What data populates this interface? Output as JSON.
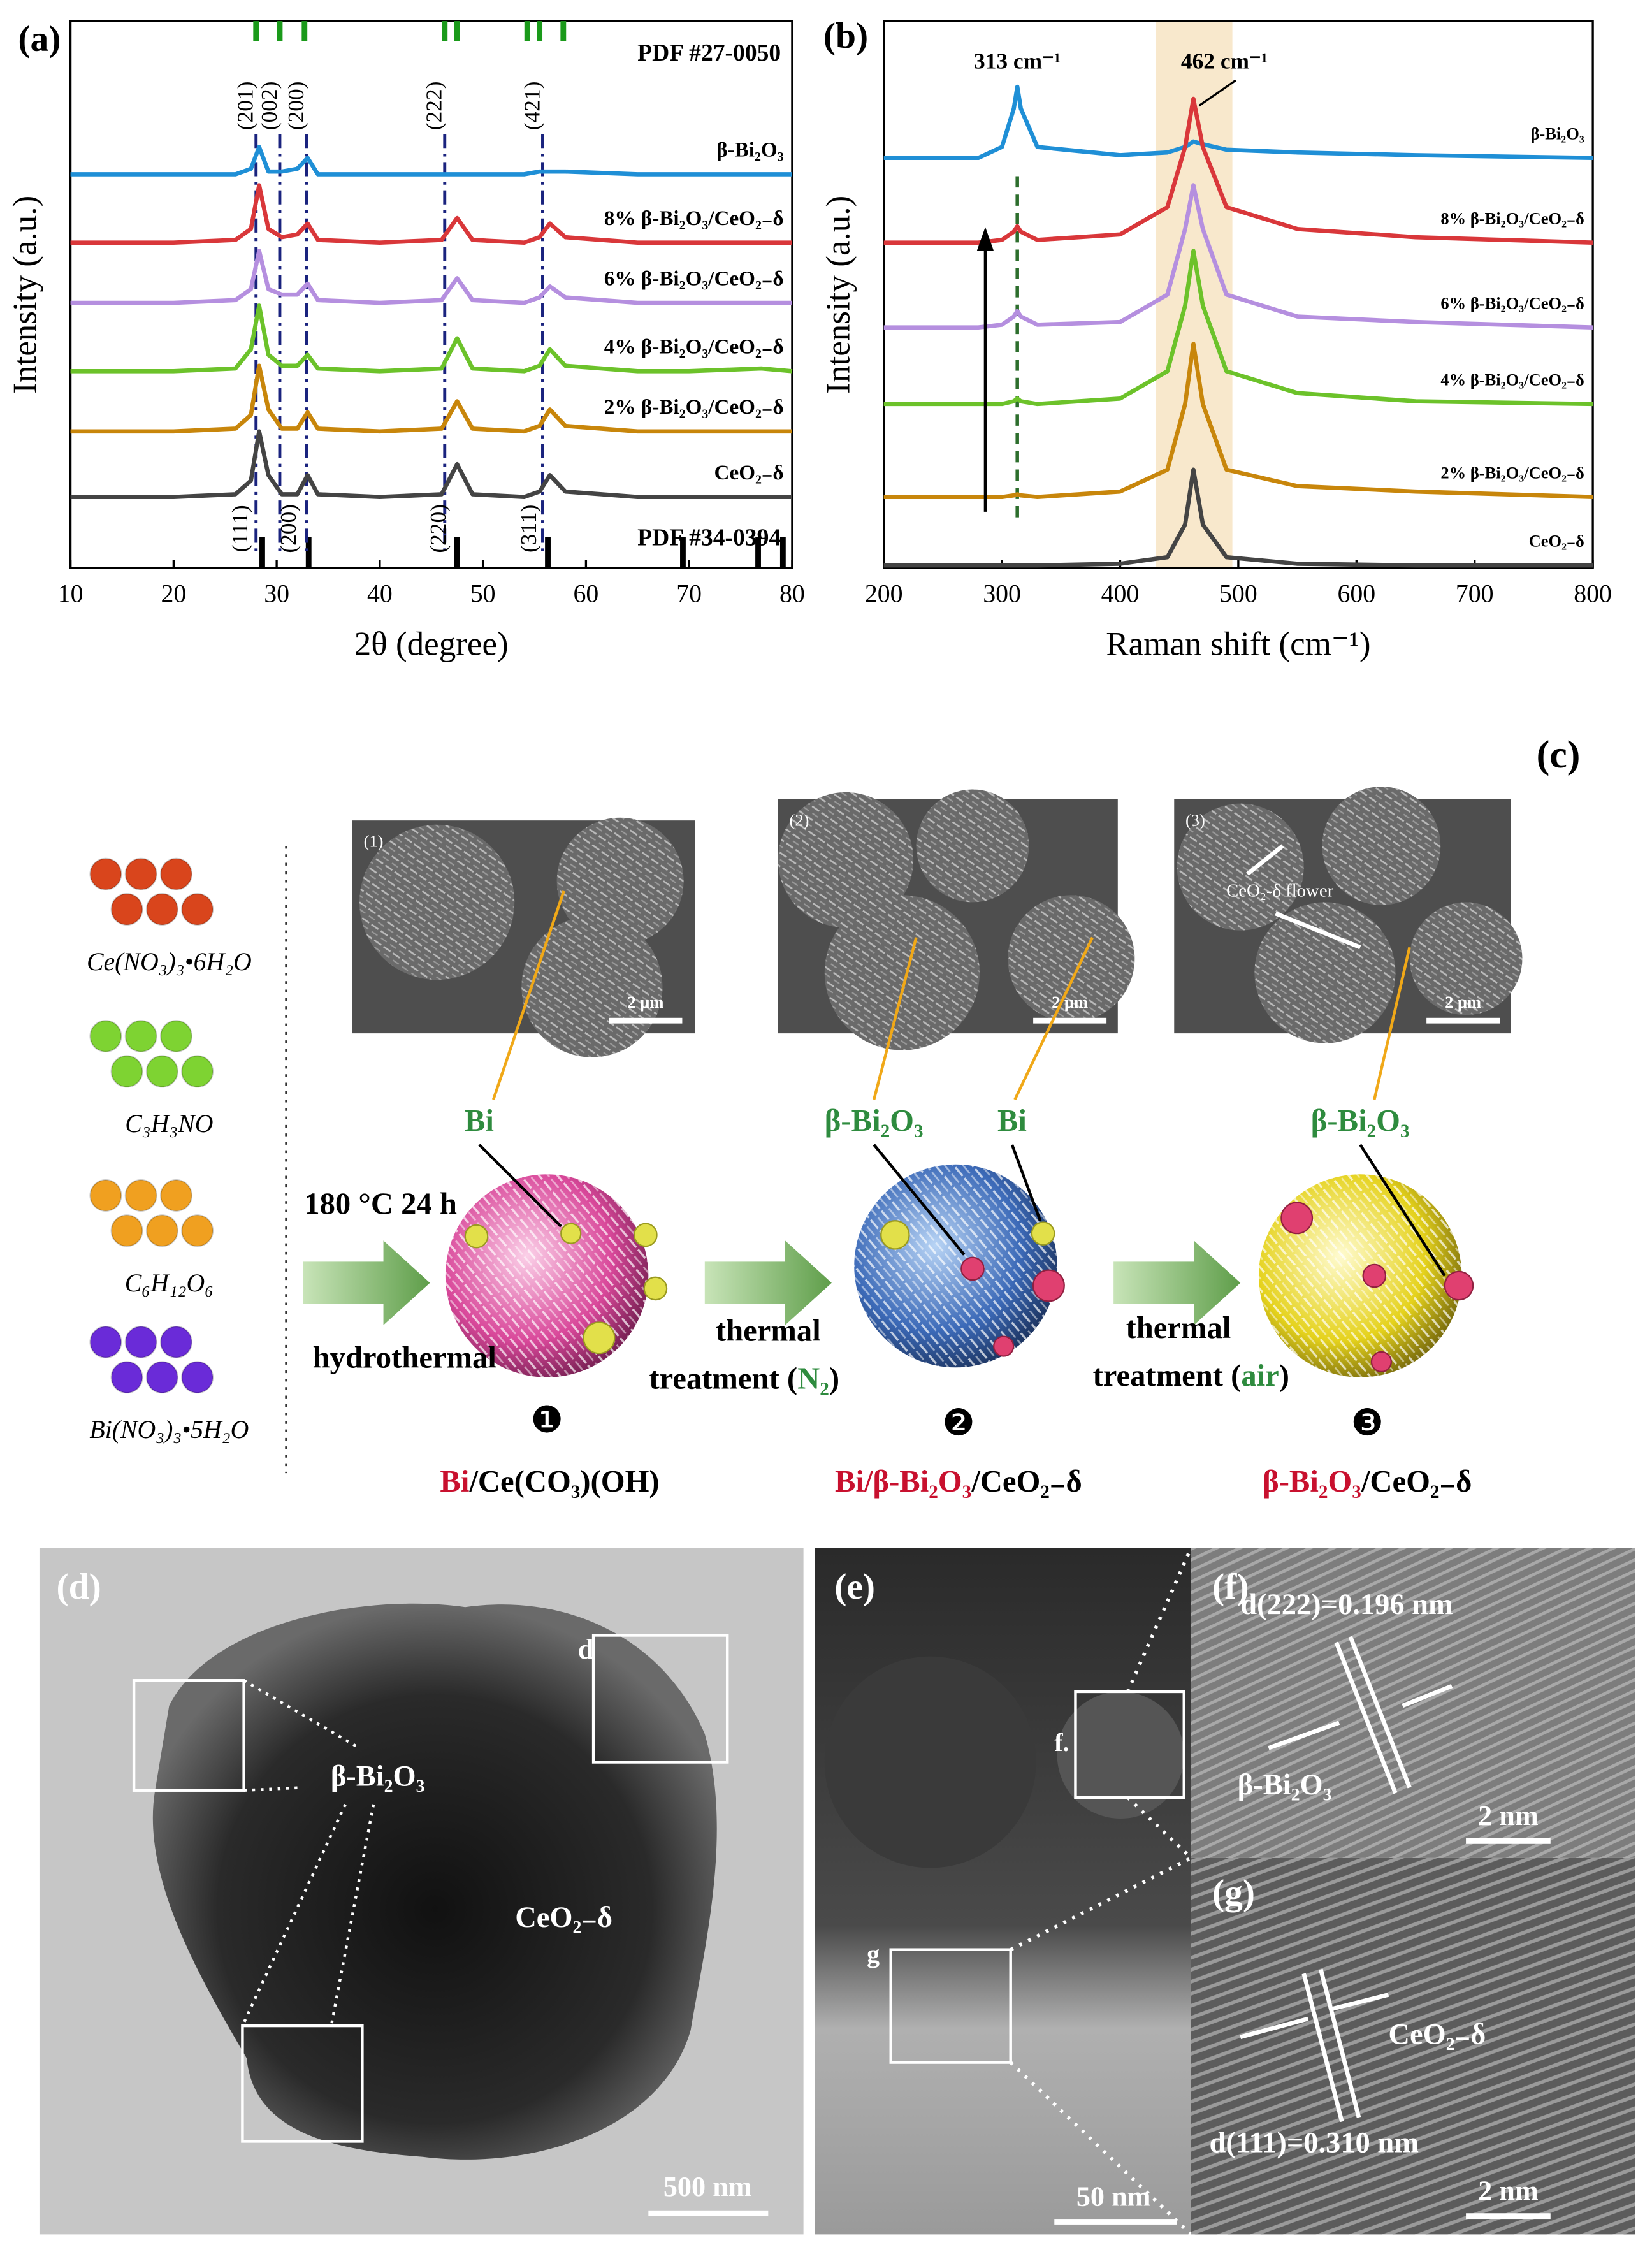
{
  "chart_data": [
    {
      "type": "line",
      "panel_label": "(a)",
      "x_label": "2θ (degree)",
      "y_label": "Intensity (a.u.)",
      "x": [
        10,
        20,
        26,
        27.5,
        28.3,
        29.2,
        30.5,
        32,
        33,
        34,
        40,
        46,
        47.5,
        49,
        54,
        55.5,
        56.5,
        58,
        65,
        70,
        77,
        80
      ],
      "xlim": [
        10,
        80
      ],
      "xticks": [
        10,
        20,
        30,
        40,
        50,
        60,
        70,
        80
      ],
      "ylim": [
        0,
        100
      ],
      "reference_label_rotate": true,
      "series": [
        {
          "name": "β-Bi₂O₃",
          "color": "#1f8fd6",
          "values": [
            72,
            72,
            72,
            73,
            77,
            72.5,
            72.5,
            73,
            75,
            72,
            72,
            72,
            72,
            72,
            72,
            72.5,
            72.5,
            72.5,
            72,
            72,
            72,
            72
          ]
        },
        {
          "name": "8% β-Bi₂O₃/CeO₂₋δ",
          "color": "#d9373a",
          "values": [
            59.5,
            59.5,
            60,
            62,
            70,
            62,
            60.5,
            61,
            63,
            60,
            59.5,
            60,
            64,
            60,
            59.5,
            60.5,
            63,
            60.5,
            59.5,
            59.5,
            59.5,
            59.5
          ]
        },
        {
          "name": "6% β-Bi₂O₃/CeO₂₋δ",
          "color": "#b58fdf",
          "values": [
            48.5,
            48.5,
            49,
            51,
            58,
            51,
            50,
            50,
            52,
            49,
            48.5,
            49,
            53,
            49,
            48.5,
            49.5,
            51.5,
            49.5,
            48.5,
            48.5,
            48.5,
            48.5
          ]
        },
        {
          "name": "4% β-Bi₂O₃/CeO₂₋δ",
          "color": "#6cc22a",
          "values": [
            36,
            36,
            36.5,
            40,
            48,
            39,
            37,
            37,
            39,
            36.5,
            36,
            36.5,
            42,
            36.5,
            36,
            37,
            40,
            37,
            36,
            36,
            36.5,
            36
          ]
        },
        {
          "name": "2% β-Bi₂O₃/CeO₂₋δ",
          "color": "#c8860b",
          "values": [
            25,
            25,
            25.5,
            28,
            37,
            29,
            25.5,
            25.5,
            28.5,
            25.5,
            25,
            25.5,
            30.5,
            25.5,
            25,
            26,
            29,
            26,
            25,
            25,
            25,
            25
          ]
        },
        {
          "name": "CeO₂₋δ",
          "color": "#444444",
          "values": [
            13,
            13,
            13.5,
            16,
            25,
            17,
            13.5,
            13.5,
            17,
            13.5,
            13,
            13.5,
            19,
            13.5,
            13,
            14,
            17,
            14,
            13,
            13,
            13,
            13
          ]
        }
      ],
      "reference_patterns": [
        {
          "name": "PDF #27-0050",
          "color": "#1a9a1a",
          "position": "top",
          "peaks": [
            28,
            30.3,
            32.7,
            46.3,
            47.5,
            54.3,
            55.5,
            57.8
          ]
        },
        {
          "name": "PDF #34-0394",
          "color": "#000000",
          "position": "bottom",
          "peaks": [
            28.6,
            33.1,
            47.5,
            56.3,
            69.4,
            76.7,
            79.1
          ]
        }
      ],
      "reference_lines": [
        {
          "x": 28,
          "label": "(201)",
          "color": "#1a237e"
        },
        {
          "x": 30.3,
          "label": "(002)",
          "color": "#1a237e"
        },
        {
          "x": 32.9,
          "label": "(200)",
          "color": "#1a237e"
        },
        {
          "x": 46.3,
          "label": "(222)",
          "color": "#1a237e"
        },
        {
          "x": 55.8,
          "label": "(421)",
          "color": "#1a237e"
        }
      ],
      "bottom_labels": [
        {
          "x": 28.3,
          "label": "(111)"
        },
        {
          "x": 33,
          "label": "(200)"
        },
        {
          "x": 47.5,
          "label": "(220)"
        },
        {
          "x": 56.3,
          "label": "(311)"
        }
      ]
    },
    {
      "type": "line",
      "panel_label": "(b)",
      "x_label": "Raman shift (cm⁻¹)",
      "y_label": "Intensity (a.u.)",
      "x": [
        200,
        280,
        300,
        310,
        313,
        316,
        330,
        400,
        440,
        455,
        462,
        470,
        490,
        550,
        650,
        800
      ],
      "xlim": [
        200,
        800
      ],
      "xticks": [
        200,
        300,
        400,
        500,
        600,
        700,
        800
      ],
      "ylim": [
        0,
        100
      ],
      "reference_label_rotate": false,
      "highlight": [
        430,
        495
      ],
      "highlight_color": "#f8e8cc",
      "series": [
        {
          "name": "β-Bi₂O₃",
          "color": "#1f8fd6",
          "values": [
            75,
            75,
            77,
            84,
            88,
            84,
            77,
            75.5,
            76,
            77,
            78,
            77.5,
            76.5,
            76,
            75.5,
            75
          ]
        },
        {
          "name": "8% β-Bi₂O₃/CeO₂₋δ",
          "color": "#d9373a",
          "values": [
            59.5,
            59.5,
            60,
            61.5,
            62.5,
            61.5,
            60,
            61,
            66,
            77,
            85.8,
            77,
            66,
            62,
            60.5,
            59.5
          ]
        },
        {
          "name": "6% β-Bi₂O₃/CeO₂₋δ",
          "color": "#b58fdf",
          "values": [
            44,
            44,
            44.5,
            46,
            47,
            46,
            44.5,
            45,
            50,
            62,
            70,
            62,
            50,
            46,
            45,
            44
          ]
        },
        {
          "name": "4% β-Bi₂O₃/CeO₂₋δ",
          "color": "#6cc22a",
          "values": [
            30,
            30,
            30,
            30.5,
            31,
            30.5,
            30,
            31,
            36,
            48,
            58,
            48,
            36,
            32,
            30.5,
            30
          ]
        },
        {
          "name": "2% β-Bi₂O₃/CeO₂₋δ",
          "color": "#c8860b",
          "values": [
            13,
            13,
            13,
            13.3,
            13.5,
            13.3,
            13,
            14,
            18,
            30,
            41,
            30,
            18,
            15,
            14,
            13
          ]
        },
        {
          "name": "CeO₂₋δ",
          "color": "#444444",
          "values": [
            0.5,
            0.5,
            0.5,
            0.5,
            0.5,
            0.5,
            0.5,
            0.8,
            2,
            8,
            18,
            8,
            2,
            0.8,
            0.5,
            0.5
          ]
        }
      ],
      "reference_lines": [
        {
          "x": 313,
          "label": "313 cm⁻¹",
          "color": "#2d6e2d"
        }
      ],
      "annotations": [
        {
          "x": 462,
          "label": "462 cm⁻¹"
        }
      ]
    }
  ],
  "scheme": {
    "panel_label": "(c)",
    "reagents": [
      "Ce(NO₃)₃•6H₂O",
      "C₃H₃NO",
      "C₆H₁₂O₆",
      "Bi(NO₃)₃•5H₂O"
    ],
    "sem_images": [
      {
        "label": "(1)",
        "scale_bar": "2 μm"
      },
      {
        "label": "(2)",
        "scale_bar": "2 μm"
      },
      {
        "label": "(3)",
        "scale_bar": "2 μm",
        "annotation": "CeO₂-δ flower"
      }
    ],
    "species": [
      "Bi",
      "β-Bi₂O₃",
      "Bi",
      "β-Bi₂O₃"
    ],
    "conditions": [
      "180 °C 24 h",
      "hydrothermal"
    ],
    "step2": [
      "thermal",
      "treatment (",
      "N₂",
      ")"
    ],
    "step3": [
      "thermal",
      "treatment (",
      "air",
      ")"
    ],
    "steps": [
      "❶",
      "❷",
      "❸"
    ],
    "products": [
      [
        "Bi",
        "/Ce(CO₃)(OH)"
      ],
      [
        "Bi/β-Bi₂O₃",
        "/CeO₂₋δ"
      ],
      [
        "β-Bi₂O₃",
        "/CeO₂₋δ"
      ]
    ]
  },
  "tem": {
    "d": {
      "label": "(d)",
      "box_label": "d",
      "phase_labels": [
        "β-Bi₂O₃",
        "CeO₂₋δ"
      ],
      "scale_bar": "500 nm"
    },
    "e": {
      "label": "(e)",
      "box_labels": [
        "f.",
        "g"
      ],
      "scale_bar": "50 nm"
    },
    "f": {
      "label": "(f)",
      "spacing": "d(222)=0.196 nm",
      "phase": "β-Bi₂O₃",
      "scale_bar": "2 nm"
    },
    "g": {
      "label": "(g)",
      "spacing": "d(111)=0.310 nm",
      "phase": "CeO₂₋δ",
      "scale_bar": "2 nm"
    }
  }
}
